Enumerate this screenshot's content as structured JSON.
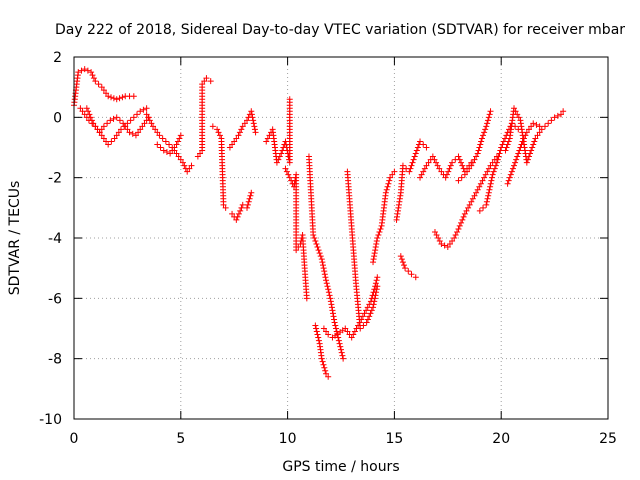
{
  "chart_data": {
    "type": "scatter",
    "title": "Day 222 of 2018, Sidereal Day-to-day VTEC variation (SDTVAR) for receiver mbar",
    "xlabel": "GPS time / hours",
    "ylabel": "SDTVAR / TECUs",
    "xlim": [
      0,
      25
    ],
    "ylim": [
      -10,
      2
    ],
    "xticks": [
      "0",
      "5",
      "10",
      "15",
      "20",
      "25"
    ],
    "yticks": [
      "2",
      "0",
      "-2",
      "-4",
      "-6",
      "-8",
      "-10"
    ],
    "grid": true,
    "marker": "plus",
    "color": "#ff0000",
    "segments": [
      {
        "name": "arc-1",
        "points": [
          [
            0.0,
            0.4
          ],
          [
            0.2,
            1.5
          ],
          [
            0.5,
            1.6
          ],
          [
            0.8,
            1.5
          ],
          [
            1.0,
            1.2
          ],
          [
            1.3,
            1.0
          ],
          [
            1.6,
            0.7
          ],
          [
            2.0,
            0.6
          ],
          [
            2.4,
            0.7
          ],
          [
            2.8,
            0.7
          ]
        ]
      },
      {
        "name": "arc-2",
        "points": [
          [
            0.3,
            0.3
          ],
          [
            0.5,
            0.1
          ],
          [
            0.7,
            -0.1
          ],
          [
            1.0,
            -0.3
          ],
          [
            1.3,
            -0.6
          ],
          [
            1.6,
            -0.9
          ],
          [
            1.9,
            -0.7
          ],
          [
            2.2,
            -0.4
          ],
          [
            2.5,
            -0.2
          ],
          [
            2.8,
            0.0
          ],
          [
            3.1,
            0.2
          ],
          [
            3.4,
            0.3
          ]
        ]
      },
      {
        "name": "arc-3",
        "points": [
          [
            0.6,
            0.3
          ],
          [
            0.9,
            -0.2
          ],
          [
            1.2,
            -0.5
          ],
          [
            1.4,
            -0.3
          ],
          [
            1.7,
            -0.1
          ],
          [
            2.0,
            0.0
          ],
          [
            2.3,
            -0.2
          ],
          [
            2.6,
            -0.5
          ],
          [
            2.9,
            -0.6
          ],
          [
            3.2,
            -0.3
          ],
          [
            3.5,
            0.0
          ]
        ]
      },
      {
        "name": "arc-4",
        "points": [
          [
            3.4,
            0.1
          ],
          [
            3.7,
            -0.3
          ],
          [
            4.0,
            -0.6
          ],
          [
            4.3,
            -0.8
          ],
          [
            4.6,
            -1.0
          ],
          [
            4.9,
            -1.3
          ],
          [
            5.1,
            -1.5
          ],
          [
            5.3,
            -1.8
          ],
          [
            5.5,
            -1.6
          ]
        ]
      },
      {
        "name": "arc-5",
        "points": [
          [
            3.9,
            -0.9
          ],
          [
            4.2,
            -1.1
          ],
          [
            4.5,
            -1.2
          ],
          [
            4.8,
            -0.9
          ],
          [
            5.0,
            -0.6
          ]
        ]
      },
      {
        "name": "arc-6",
        "points": [
          [
            5.8,
            -1.3
          ],
          [
            6.0,
            -1.1
          ],
          [
            6.0,
            1.1
          ],
          [
            6.2,
            1.3
          ],
          [
            6.4,
            1.2
          ]
        ]
      },
      {
        "name": "arc-7",
        "points": [
          [
            6.5,
            -0.3
          ],
          [
            6.7,
            -0.4
          ],
          [
            6.9,
            -0.7
          ],
          [
            7.0,
            -2.9
          ],
          [
            7.1,
            -3.0
          ]
        ]
      },
      {
        "name": "arc-8",
        "points": [
          [
            7.3,
            -1.0
          ],
          [
            7.5,
            -0.8
          ],
          [
            7.7,
            -0.6
          ],
          [
            7.9,
            -0.3
          ],
          [
            8.1,
            -0.1
          ],
          [
            8.3,
            0.2
          ],
          [
            8.5,
            -0.5
          ]
        ]
      },
      {
        "name": "arc-9",
        "points": [
          [
            7.4,
            -3.2
          ],
          [
            7.6,
            -3.4
          ],
          [
            7.9,
            -2.9
          ],
          [
            8.1,
            -3.0
          ],
          [
            8.3,
            -2.5
          ]
        ]
      },
      {
        "name": "arc-10",
        "points": [
          [
            9.0,
            -0.8
          ],
          [
            9.3,
            -0.4
          ],
          [
            9.5,
            -1.5
          ],
          [
            9.7,
            -1.2
          ],
          [
            9.9,
            -0.8
          ],
          [
            10.1,
            -1.5
          ],
          [
            10.1,
            0.6
          ]
        ]
      },
      {
        "name": "arc-11",
        "points": [
          [
            9.9,
            -1.7
          ],
          [
            10.1,
            -2.0
          ],
          [
            10.3,
            -2.3
          ],
          [
            10.4,
            -1.9
          ],
          [
            10.4,
            -4.4
          ],
          [
            10.6,
            -4.2
          ],
          [
            10.7,
            -3.9
          ],
          [
            10.8,
            -5.0
          ],
          [
            10.9,
            -6.0
          ]
        ]
      },
      {
        "name": "arc-12",
        "points": [
          [
            11.0,
            -1.3
          ],
          [
            11.2,
            -3.9
          ],
          [
            11.4,
            -4.3
          ],
          [
            11.6,
            -4.7
          ],
          [
            11.8,
            -5.4
          ],
          [
            12.0,
            -6.0
          ],
          [
            12.2,
            -6.8
          ],
          [
            12.4,
            -7.4
          ],
          [
            12.6,
            -8.0
          ]
        ]
      },
      {
        "name": "arc-13",
        "points": [
          [
            11.3,
            -6.9
          ],
          [
            11.5,
            -7.5
          ],
          [
            11.6,
            -8.0
          ],
          [
            11.8,
            -8.5
          ],
          [
            11.9,
            -8.6
          ]
        ]
      },
      {
        "name": "arc-14",
        "points": [
          [
            11.7,
            -7.0
          ],
          [
            11.9,
            -7.2
          ],
          [
            12.1,
            -7.3
          ],
          [
            12.7,
            -7.0
          ],
          [
            13.0,
            -7.3
          ],
          [
            13.3,
            -6.9
          ],
          [
            13.6,
            -6.5
          ],
          [
            13.9,
            -6.1
          ],
          [
            14.1,
            -5.6
          ],
          [
            14.2,
            -5.3
          ]
        ]
      },
      {
        "name": "arc-15",
        "points": [
          [
            12.8,
            -1.8
          ],
          [
            13.2,
            -5.5
          ],
          [
            13.4,
            -7.0
          ],
          [
            13.7,
            -6.8
          ],
          [
            14.0,
            -6.3
          ],
          [
            14.2,
            -5.6
          ]
        ]
      },
      {
        "name": "arc-16",
        "points": [
          [
            14.0,
            -4.8
          ],
          [
            14.2,
            -4.0
          ],
          [
            14.4,
            -3.6
          ],
          [
            14.6,
            -2.5
          ],
          [
            14.8,
            -2.0
          ],
          [
            15.0,
            -1.8
          ]
        ]
      },
      {
        "name": "arc-17",
        "points": [
          [
            15.1,
            -3.4
          ],
          [
            15.3,
            -2.5
          ],
          [
            15.4,
            -1.6
          ],
          [
            15.7,
            -1.8
          ],
          [
            16.0,
            -1.2
          ],
          [
            16.2,
            -0.8
          ],
          [
            16.5,
            -1.0
          ]
        ]
      },
      {
        "name": "arc-18",
        "points": [
          [
            15.3,
            -4.6
          ],
          [
            15.5,
            -5.0
          ],
          [
            15.8,
            -5.2
          ],
          [
            16.0,
            -5.3
          ]
        ]
      },
      {
        "name": "arc-19",
        "points": [
          [
            16.2,
            -2.0
          ],
          [
            16.5,
            -1.6
          ],
          [
            16.8,
            -1.3
          ],
          [
            17.1,
            -1.7
          ],
          [
            17.4,
            -2.0
          ],
          [
            17.7,
            -1.5
          ],
          [
            18.0,
            -1.3
          ],
          [
            18.3,
            -1.8
          ],
          [
            18.6,
            -1.5
          ]
        ]
      },
      {
        "name": "arc-20",
        "points": [
          [
            16.9,
            -3.8
          ],
          [
            17.2,
            -4.2
          ],
          [
            17.5,
            -4.3
          ],
          [
            17.8,
            -4.0
          ],
          [
            18.0,
            -3.7
          ],
          [
            18.3,
            -3.2
          ],
          [
            18.6,
            -2.8
          ],
          [
            18.9,
            -2.4
          ],
          [
            19.2,
            -2.0
          ],
          [
            19.5,
            -1.6
          ],
          [
            19.8,
            -1.3
          ]
        ]
      },
      {
        "name": "arc-21",
        "points": [
          [
            18.0,
            -2.1
          ],
          [
            18.3,
            -1.9
          ],
          [
            18.6,
            -1.6
          ],
          [
            18.9,
            -1.2
          ],
          [
            19.1,
            -0.7
          ],
          [
            19.3,
            -0.3
          ],
          [
            19.5,
            0.2
          ]
        ]
      },
      {
        "name": "arc-22",
        "points": [
          [
            19.0,
            -3.1
          ],
          [
            19.3,
            -2.9
          ],
          [
            19.6,
            -1.9
          ],
          [
            19.8,
            -1.5
          ],
          [
            20.0,
            -1.0
          ],
          [
            20.3,
            -0.5
          ],
          [
            20.5,
            -0.2
          ],
          [
            20.8,
            -0.4
          ]
        ]
      },
      {
        "name": "arc-23",
        "points": [
          [
            20.3,
            -2.2
          ],
          [
            20.5,
            -1.8
          ],
          [
            20.8,
            -1.2
          ],
          [
            21.0,
            -0.8
          ],
          [
            21.2,
            -0.5
          ],
          [
            21.5,
            -0.2
          ],
          [
            21.8,
            -0.3
          ]
        ]
      },
      {
        "name": "arc-24",
        "points": [
          [
            20.2,
            -1.1
          ],
          [
            20.4,
            -0.7
          ],
          [
            20.6,
            0.3
          ],
          [
            20.9,
            -0.1
          ],
          [
            21.2,
            -1.5
          ],
          [
            21.4,
            -1.1
          ],
          [
            21.6,
            -0.7
          ],
          [
            21.9,
            -0.4
          ],
          [
            22.2,
            -0.2
          ],
          [
            22.5,
            0.0
          ],
          [
            22.8,
            0.1
          ],
          [
            22.9,
            0.2
          ]
        ]
      }
    ]
  }
}
